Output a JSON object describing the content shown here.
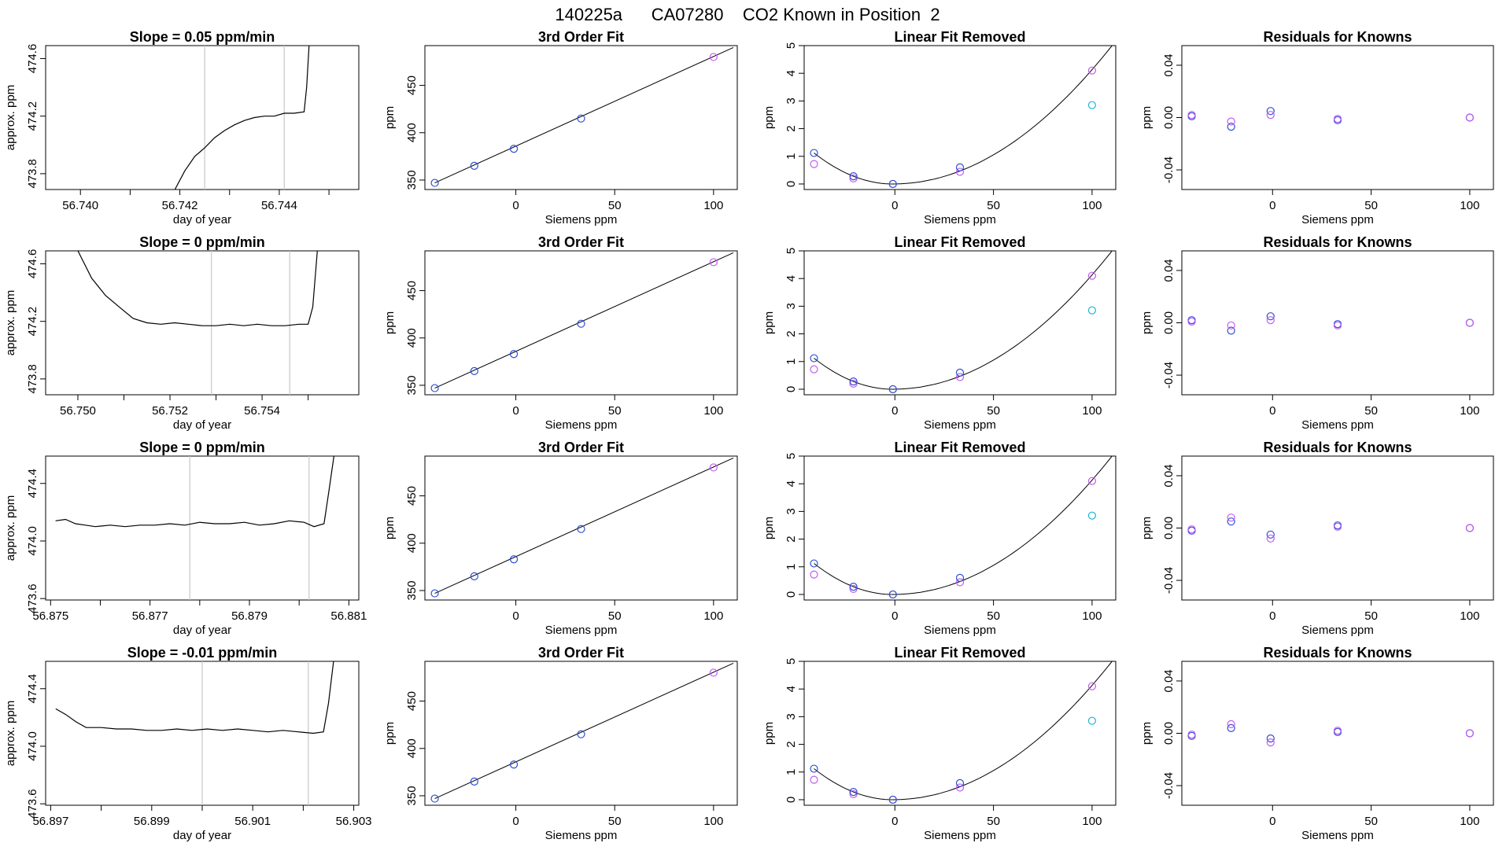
{
  "chart_data": {
    "title": "140225a      CA07280    CO2 Known in Position  2",
    "xlabels": {
      "time": "day of year",
      "siemens": "Siemens ppm"
    },
    "ylabels": {
      "time": "approx. ppm",
      "ppm": "ppm"
    },
    "panel_titles": {
      "fit": "3rd Order Fit",
      "linear": "Linear Fit Removed",
      "residuals": "Residuals for Knowns"
    },
    "siemens_x": [
      -41,
      -21,
      -1,
      33,
      100
    ],
    "fit_panel": {
      "type": "scatter",
      "x_ticks": [
        0,
        50,
        100
      ],
      "y_ticks": [
        350,
        400,
        450
      ],
      "y_range": [
        340,
        492
      ],
      "x_range": [
        -46,
        112
      ],
      "points": [
        347,
        365,
        383,
        415,
        480
      ],
      "line": [
        [
          -41,
          347
        ],
        [
          110,
          490
        ]
      ]
    },
    "linear_panel": {
      "type": "scatter",
      "x_ticks": [
        0,
        50,
        100
      ],
      "y_ticks": [
        0,
        1,
        2,
        3,
        4,
        5
      ],
      "x_range": [
        -46,
        112
      ],
      "y_range": [
        -0.2,
        5.0
      ],
      "blue": [
        1.12,
        0.28,
        0.0,
        0.6
      ],
      "violet": [
        0.72,
        0.2,
        0.0,
        0.44,
        4.1
      ],
      "cyan_point": [
        100,
        2.85
      ]
    },
    "residual_panel": {
      "type": "scatter",
      "x_ticks": [
        0,
        50,
        100
      ],
      "y_ticks": [
        -0.04,
        0.0,
        0.04
      ],
      "y_tick_labels": [
        "-0.04",
        "0.00",
        "0.04"
      ],
      "x_range": [
        -46,
        112
      ],
      "y_range": [
        -0.055,
        0.055
      ]
    },
    "rows": [
      {
        "slope_title": "Slope =  0.05  ppm/min",
        "time_x_ticks": [
          "56.740",
          "56.742",
          "56.744"
        ],
        "time_x_tick_values": [
          56.74,
          56.742,
          56.744
        ],
        "time_x_minor": [
          56.741,
          56.743,
          56.745
        ],
        "time_x_range": [
          56.7393,
          56.7456
        ],
        "time_y_ticks": [
          "473.8",
          "474.2",
          "474.6"
        ],
        "time_y_tick_values": [
          473.8,
          474.2,
          474.6
        ],
        "time_y_range": [
          473.69,
          474.69
        ],
        "time_vlines": [
          56.7425,
          56.7441
        ],
        "time_series": [
          [
            56.7419,
            473.69
          ],
          [
            56.7421,
            473.82
          ],
          [
            56.7423,
            473.92
          ],
          [
            56.7425,
            473.98
          ],
          [
            56.7427,
            474.05
          ],
          [
            56.7429,
            474.1
          ],
          [
            56.7431,
            474.14
          ],
          [
            56.7433,
            474.17
          ],
          [
            56.7435,
            474.19
          ],
          [
            56.7437,
            474.2
          ],
          [
            56.7439,
            474.2
          ],
          [
            56.7441,
            474.22
          ],
          [
            56.7443,
            474.22
          ],
          [
            56.7445,
            474.23
          ],
          [
            56.74455,
            474.4
          ],
          [
            56.7446,
            474.69
          ]
        ],
        "residual_blue": [
          0.001,
          -0.007,
          0.005,
          -0.002,
          0.0
        ],
        "residual_violet": [
          0.002,
          -0.003,
          0.002,
          -0.001,
          0.0
        ]
      },
      {
        "slope_title": "Slope =  0  ppm/min",
        "time_x_ticks": [
          "56.750",
          "56.752",
          "56.754"
        ],
        "time_x_tick_values": [
          56.75,
          56.752,
          56.754
        ],
        "time_x_minor": [
          56.751,
          56.753,
          56.755
        ],
        "time_x_range": [
          56.7493,
          56.7561
        ],
        "time_y_ticks": [
          "473.8",
          "474.2",
          "474.6"
        ],
        "time_y_tick_values": [
          473.8,
          474.2,
          474.6
        ],
        "time_y_range": [
          473.69,
          474.69
        ],
        "time_vlines": [
          56.7529,
          56.7546
        ],
        "time_series": [
          [
            56.75,
            474.69
          ],
          [
            56.7503,
            474.5
          ],
          [
            56.7506,
            474.38
          ],
          [
            56.7509,
            474.3
          ],
          [
            56.7512,
            474.22
          ],
          [
            56.7515,
            474.19
          ],
          [
            56.7518,
            474.18
          ],
          [
            56.7521,
            474.19
          ],
          [
            56.7524,
            474.18
          ],
          [
            56.7527,
            474.17
          ],
          [
            56.753,
            474.17
          ],
          [
            56.7533,
            474.18
          ],
          [
            56.7536,
            474.17
          ],
          [
            56.7539,
            474.18
          ],
          [
            56.7542,
            474.17
          ],
          [
            56.7545,
            474.17
          ],
          [
            56.7548,
            474.18
          ],
          [
            56.755,
            474.18
          ],
          [
            56.7551,
            474.3
          ],
          [
            56.7552,
            474.69
          ]
        ],
        "residual_blue": [
          0.002,
          -0.006,
          0.005,
          -0.001,
          0.0
        ],
        "residual_violet": [
          0.001,
          -0.002,
          0.002,
          -0.002,
          0.0
        ]
      },
      {
        "slope_title": "Slope =  0  ppm/min",
        "time_x_ticks": [
          "56.875",
          "56.877",
          "56.879",
          "56.881"
        ],
        "time_x_tick_values": [
          56.875,
          56.877,
          56.879,
          56.881
        ],
        "time_x_minor": [
          56.876,
          56.878,
          56.88
        ],
        "time_x_range": [
          56.8749,
          56.8812
        ],
        "time_y_ticks": [
          "473.6",
          "474.0",
          "474.4"
        ],
        "time_y_tick_values": [
          473.6,
          474.0,
          474.4
        ],
        "time_y_range": [
          473.59,
          474.59
        ],
        "time_vlines": [
          56.8778,
          56.8802
        ],
        "time_series": [
          [
            56.8751,
            474.14
          ],
          [
            56.8753,
            474.15
          ],
          [
            56.8755,
            474.12
          ],
          [
            56.8757,
            474.11
          ],
          [
            56.8759,
            474.1
          ],
          [
            56.8762,
            474.11
          ],
          [
            56.8765,
            474.1
          ],
          [
            56.8768,
            474.11
          ],
          [
            56.8771,
            474.11
          ],
          [
            56.8774,
            474.12
          ],
          [
            56.8777,
            474.11
          ],
          [
            56.878,
            474.13
          ],
          [
            56.8783,
            474.12
          ],
          [
            56.8786,
            474.12
          ],
          [
            56.8789,
            474.13
          ],
          [
            56.8792,
            474.11
          ],
          [
            56.8795,
            474.12
          ],
          [
            56.8798,
            474.14
          ],
          [
            56.8801,
            474.13
          ],
          [
            56.8803,
            474.1
          ],
          [
            56.8805,
            474.12
          ],
          [
            56.8806,
            474.35
          ],
          [
            56.8807,
            474.59
          ]
        ],
        "residual_blue": [
          -0.002,
          0.005,
          -0.005,
          0.002,
          0.0
        ],
        "residual_violet": [
          -0.001,
          0.008,
          -0.008,
          0.001,
          0.0
        ]
      },
      {
        "slope_title": "Slope =  -0.01  ppm/min",
        "time_x_ticks": [
          "56.897",
          "56.899",
          "56.901",
          "56.903"
        ],
        "time_x_tick_values": [
          56.897,
          56.899,
          56.901,
          56.903
        ],
        "time_x_minor": [
          56.898,
          56.9,
          56.902
        ],
        "time_x_range": [
          56.8969,
          56.9031
        ],
        "time_y_ticks": [
          "473.6",
          "474.0",
          "474.4"
        ],
        "time_y_tick_values": [
          473.6,
          474.0,
          474.4
        ],
        "time_y_range": [
          473.59,
          474.59
        ],
        "time_vlines": [
          56.9,
          56.9021
        ],
        "time_series": [
          [
            56.8971,
            474.26
          ],
          [
            56.8973,
            474.22
          ],
          [
            56.8975,
            474.17
          ],
          [
            56.8977,
            474.13
          ],
          [
            56.898,
            474.13
          ],
          [
            56.8983,
            474.12
          ],
          [
            56.8986,
            474.12
          ],
          [
            56.8989,
            474.11
          ],
          [
            56.8992,
            474.11
          ],
          [
            56.8995,
            474.12
          ],
          [
            56.8998,
            474.11
          ],
          [
            56.9001,
            474.12
          ],
          [
            56.9004,
            474.11
          ],
          [
            56.9007,
            474.12
          ],
          [
            56.901,
            474.11
          ],
          [
            56.9013,
            474.1
          ],
          [
            56.9016,
            474.11
          ],
          [
            56.9019,
            474.1
          ],
          [
            56.9022,
            474.09
          ],
          [
            56.9024,
            474.1
          ],
          [
            56.9025,
            474.3
          ],
          [
            56.9026,
            474.59
          ]
        ],
        "residual_blue": [
          -0.002,
          0.004,
          -0.004,
          0.001,
          0.0
        ],
        "residual_violet": [
          -0.001,
          0.007,
          -0.007,
          0.002,
          0.0
        ]
      }
    ],
    "colors": {
      "blue": "#2b4fd6",
      "violet": "#c25cf0",
      "purple": "#7a1fd1",
      "cyan": "#1fb5d9",
      "line": "#000000",
      "vline": "#c8c8c8"
    }
  }
}
